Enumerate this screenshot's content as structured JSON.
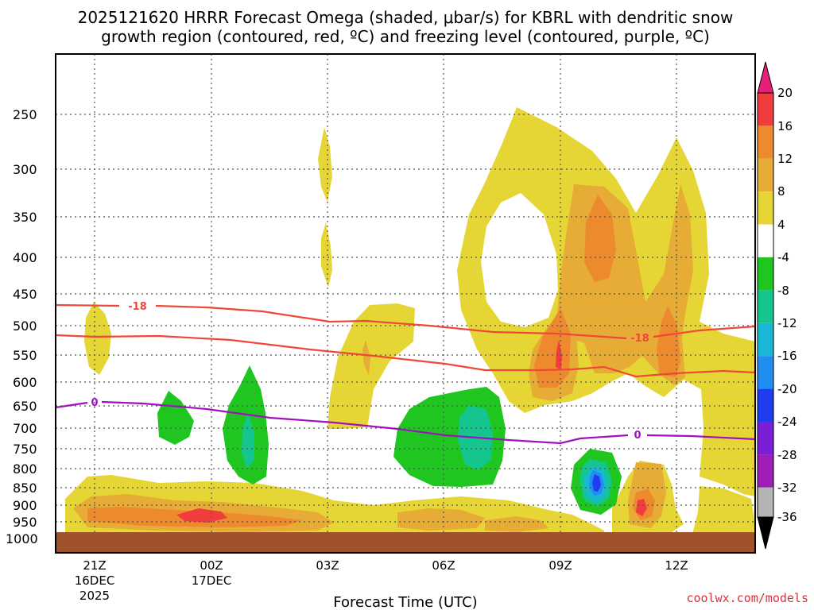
{
  "chart_data": {
    "type": "heatmap",
    "title_line1": "2025121620 HRRR Forecast Omega (shaded, μbar/s) for KBRL with dendritic snow",
    "title_line2": "growth region (contoured, red, ºC) and freezing level (contoured, purple, ºC)",
    "xlabel": "Forecast Time (UTC)",
    "credit": "coolwx.com/models",
    "y_ticks": [
      "250",
      "300",
      "350",
      "400",
      "450",
      "500",
      "550",
      "600",
      "650",
      "700",
      "750",
      "800",
      "850",
      "900",
      "950",
      "1000"
    ],
    "x_ticks": [
      {
        "label": "21Z",
        "date": "16DEC",
        "year": "2025"
      },
      {
        "label": "00Z",
        "date": "17DEC",
        "year": ""
      },
      {
        "label": "03Z",
        "date": "",
        "year": ""
      },
      {
        "label": "06Z",
        "date": "",
        "year": ""
      },
      {
        "label": "09Z",
        "date": "",
        "year": ""
      },
      {
        "label": "12Z",
        "date": "",
        "year": ""
      }
    ],
    "colorbar_labels": [
      "20",
      "16",
      "12",
      "8",
      "4",
      "-4",
      "-8",
      "-12",
      "-16",
      "-20",
      "-24",
      "-28",
      "-32",
      "-36"
    ],
    "colorbar_colors": [
      "#f03c3c",
      "#ee8a2e",
      "#e6ac36",
      "#e6d635",
      "#ffffff",
      "#1fc61f",
      "#14c68e",
      "#1ab6d6",
      "#1e8ef0",
      "#1e3cf0",
      "#7a1ed8",
      "#a01eb8",
      "#b4b4b4"
    ],
    "colorbar_top": "#e81e78",
    "colorbar_bottom": "#000000",
    "contour_labels": {
      "dgz_top": "-18",
      "dgz_right": "-18",
      "freezing_left": "0",
      "freezing_right": "0"
    },
    "colors": {
      "yellow": "#e6d635",
      "gold": "#e6ac36",
      "orange": "#ee8a2e",
      "red": "#f03c3c",
      "green": "#1fc61f",
      "teal": "#14c68e",
      "cyan": "#1ab6d6",
      "blue": "#1e8ef0",
      "darkblue": "#1e3cf0",
      "ground": "#a0522d",
      "dgz": "#f04838",
      "freezing": "#a010c0"
    }
  }
}
